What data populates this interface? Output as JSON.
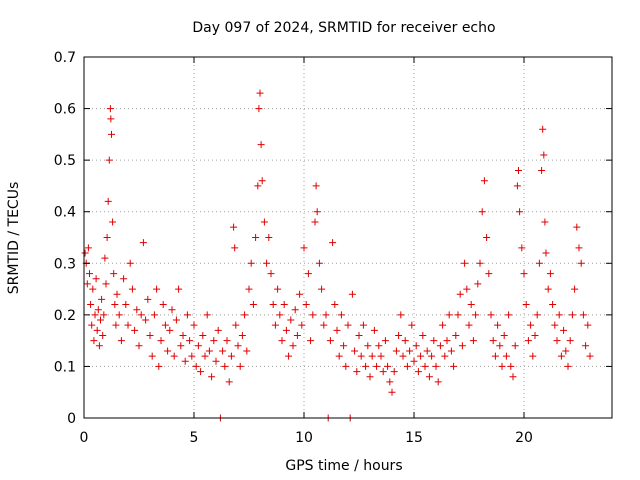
{
  "chart_data": {
    "type": "scatter",
    "title": "Day 097 of 2024, SRMTID for receiver echo",
    "xlabel": "GPS time / hours",
    "ylabel": "SRMTID / TECUs",
    "xlim": [
      0,
      24
    ],
    "ylim": [
      0,
      0.7
    ],
    "xticks": [
      0,
      5,
      10,
      15,
      20
    ],
    "yticks": [
      0,
      0.1,
      0.2,
      0.3,
      0.4,
      0.5,
      0.6,
      0.7
    ],
    "grid": true,
    "marker": "plus",
    "color": "#e00000",
    "series": [
      {
        "name": "SRMTID",
        "points": [
          [
            0.05,
            0.32
          ],
          [
            0.1,
            0.3
          ],
          [
            0.15,
            0.26
          ],
          [
            0.2,
            0.33
          ],
          [
            0.25,
            0.28
          ],
          [
            0.3,
            0.22
          ],
          [
            0.35,
            0.18
          ],
          [
            0.4,
            0.25
          ],
          [
            0.45,
            0.15
          ],
          [
            0.5,
            0.2
          ],
          [
            0.55,
            0.27
          ],
          [
            0.6,
            0.17
          ],
          [
            0.65,
            0.21
          ],
          [
            0.7,
            0.14
          ],
          [
            0.75,
            0.19
          ],
          [
            0.8,
            0.23
          ],
          [
            0.85,
            0.16
          ],
          [
            0.9,
            0.2
          ],
          [
            0.95,
            0.31
          ],
          [
            1.0,
            0.26
          ],
          [
            1.05,
            0.35
          ],
          [
            1.1,
            0.42
          ],
          [
            1.15,
            0.5
          ],
          [
            1.2,
            0.6
          ],
          [
            1.22,
            0.58
          ],
          [
            1.25,
            0.55
          ],
          [
            1.3,
            0.38
          ],
          [
            1.35,
            0.28
          ],
          [
            1.4,
            0.22
          ],
          [
            1.45,
            0.18
          ],
          [
            1.5,
            0.24
          ],
          [
            1.6,
            0.2
          ],
          [
            1.7,
            0.15
          ],
          [
            1.8,
            0.27
          ],
          [
            1.9,
            0.22
          ],
          [
            2.0,
            0.18
          ],
          [
            2.1,
            0.3
          ],
          [
            2.2,
            0.25
          ],
          [
            2.3,
            0.17
          ],
          [
            2.4,
            0.21
          ],
          [
            2.5,
            0.14
          ],
          [
            2.6,
            0.2
          ],
          [
            2.7,
            0.34
          ],
          [
            2.8,
            0.19
          ],
          [
            2.9,
            0.23
          ],
          [
            3.0,
            0.16
          ],
          [
            3.1,
            0.12
          ],
          [
            3.2,
            0.2
          ],
          [
            3.3,
            0.25
          ],
          [
            3.4,
            0.1
          ],
          [
            3.5,
            0.15
          ],
          [
            3.6,
            0.22
          ],
          [
            3.7,
            0.18
          ],
          [
            3.8,
            0.13
          ],
          [
            3.9,
            0.17
          ],
          [
            4.0,
            0.21
          ],
          [
            4.1,
            0.12
          ],
          [
            4.2,
            0.19
          ],
          [
            4.3,
            0.25
          ],
          [
            4.4,
            0.14
          ],
          [
            4.5,
            0.16
          ],
          [
            4.6,
            0.11
          ],
          [
            4.7,
            0.2
          ],
          [
            4.8,
            0.15
          ],
          [
            4.9,
            0.12
          ],
          [
            5.0,
            0.18
          ],
          [
            5.1,
            0.1
          ],
          [
            5.2,
            0.14
          ],
          [
            5.3,
            0.09
          ],
          [
            5.4,
            0.16
          ],
          [
            5.5,
            0.12
          ],
          [
            5.6,
            0.2
          ],
          [
            5.7,
            0.13
          ],
          [
            5.8,
            0.08
          ],
          [
            5.9,
            0.15
          ],
          [
            6.0,
            0.11
          ],
          [
            6.1,
            0.17
          ],
          [
            6.2,
            0.0
          ],
          [
            6.3,
            0.13
          ],
          [
            6.4,
            0.1
          ],
          [
            6.5,
            0.15
          ],
          [
            6.6,
            0.07
          ],
          [
            6.7,
            0.12
          ],
          [
            6.8,
            0.37
          ],
          [
            6.85,
            0.33
          ],
          [
            6.9,
            0.18
          ],
          [
            7.0,
            0.14
          ],
          [
            7.1,
            0.1
          ],
          [
            7.2,
            0.16
          ],
          [
            7.3,
            0.2
          ],
          [
            7.4,
            0.13
          ],
          [
            7.5,
            0.25
          ],
          [
            7.6,
            0.3
          ],
          [
            7.7,
            0.22
          ],
          [
            7.8,
            0.35
          ],
          [
            7.9,
            0.45
          ],
          [
            7.95,
            0.6
          ],
          [
            8.0,
            0.63
          ],
          [
            8.05,
            0.53
          ],
          [
            8.1,
            0.46
          ],
          [
            8.2,
            0.38
          ],
          [
            8.3,
            0.3
          ],
          [
            8.4,
            0.35
          ],
          [
            8.5,
            0.28
          ],
          [
            8.6,
            0.22
          ],
          [
            8.7,
            0.18
          ],
          [
            8.8,
            0.25
          ],
          [
            8.9,
            0.2
          ],
          [
            9.0,
            0.15
          ],
          [
            9.1,
            0.22
          ],
          [
            9.2,
            0.17
          ],
          [
            9.3,
            0.12
          ],
          [
            9.4,
            0.19
          ],
          [
            9.5,
            0.14
          ],
          [
            9.6,
            0.21
          ],
          [
            9.7,
            0.16
          ],
          [
            9.8,
            0.24
          ],
          [
            9.9,
            0.18
          ],
          [
            10.0,
            0.33
          ],
          [
            10.1,
            0.22
          ],
          [
            10.2,
            0.28
          ],
          [
            10.3,
            0.15
          ],
          [
            10.4,
            0.2
          ],
          [
            10.5,
            0.38
          ],
          [
            10.55,
            0.45
          ],
          [
            10.6,
            0.4
          ],
          [
            10.7,
            0.3
          ],
          [
            10.8,
            0.25
          ],
          [
            10.9,
            0.18
          ],
          [
            11.0,
            0.2
          ],
          [
            11.1,
            0.0
          ],
          [
            11.2,
            0.15
          ],
          [
            11.3,
            0.34
          ],
          [
            11.4,
            0.22
          ],
          [
            11.5,
            0.17
          ],
          [
            11.6,
            0.12
          ],
          [
            11.7,
            0.2
          ],
          [
            11.8,
            0.14
          ],
          [
            11.9,
            0.1
          ],
          [
            12.0,
            0.18
          ],
          [
            12.1,
            0.0
          ],
          [
            12.2,
            0.24
          ],
          [
            12.3,
            0.13
          ],
          [
            12.4,
            0.09
          ],
          [
            12.5,
            0.16
          ],
          [
            12.6,
            0.12
          ],
          [
            12.7,
            0.18
          ],
          [
            12.8,
            0.1
          ],
          [
            12.9,
            0.14
          ],
          [
            13.0,
            0.08
          ],
          [
            13.1,
            0.12
          ],
          [
            13.2,
            0.17
          ],
          [
            13.3,
            0.1
          ],
          [
            13.4,
            0.14
          ],
          [
            13.5,
            0.12
          ],
          [
            13.6,
            0.09
          ],
          [
            13.7,
            0.15
          ],
          [
            13.8,
            0.1
          ],
          [
            13.9,
            0.07
          ],
          [
            14.0,
            0.05
          ],
          [
            14.1,
            0.09
          ],
          [
            14.2,
            0.13
          ],
          [
            14.3,
            0.16
          ],
          [
            14.4,
            0.2
          ],
          [
            14.5,
            0.12
          ],
          [
            14.6,
            0.15
          ],
          [
            14.7,
            0.1
          ],
          [
            14.8,
            0.13
          ],
          [
            14.9,
            0.18
          ],
          [
            15.0,
            0.11
          ],
          [
            15.1,
            0.14
          ],
          [
            15.2,
            0.09
          ],
          [
            15.3,
            0.12
          ],
          [
            15.4,
            0.16
          ],
          [
            15.5,
            0.1
          ],
          [
            15.6,
            0.13
          ],
          [
            15.7,
            0.08
          ],
          [
            15.8,
            0.12
          ],
          [
            15.9,
            0.15
          ],
          [
            16.0,
            0.1
          ],
          [
            16.1,
            0.07
          ],
          [
            16.2,
            0.14
          ],
          [
            16.3,
            0.18
          ],
          [
            16.4,
            0.12
          ],
          [
            16.5,
            0.15
          ],
          [
            16.6,
            0.2
          ],
          [
            16.7,
            0.13
          ],
          [
            16.8,
            0.1
          ],
          [
            16.9,
            0.16
          ],
          [
            17.0,
            0.2
          ],
          [
            17.1,
            0.24
          ],
          [
            17.2,
            0.14
          ],
          [
            17.3,
            0.3
          ],
          [
            17.4,
            0.25
          ],
          [
            17.5,
            0.18
          ],
          [
            17.6,
            0.22
          ],
          [
            17.7,
            0.15
          ],
          [
            17.8,
            0.2
          ],
          [
            17.9,
            0.26
          ],
          [
            18.0,
            0.3
          ],
          [
            18.1,
            0.4
          ],
          [
            18.2,
            0.46
          ],
          [
            18.3,
            0.35
          ],
          [
            18.4,
            0.28
          ],
          [
            18.5,
            0.2
          ],
          [
            18.6,
            0.15
          ],
          [
            18.7,
            0.12
          ],
          [
            18.8,
            0.18
          ],
          [
            18.9,
            0.14
          ],
          [
            19.0,
            0.1
          ],
          [
            19.1,
            0.16
          ],
          [
            19.2,
            0.12
          ],
          [
            19.3,
            0.2
          ],
          [
            19.4,
            0.1
          ],
          [
            19.5,
            0.08
          ],
          [
            19.6,
            0.14
          ],
          [
            19.7,
            0.45
          ],
          [
            19.75,
            0.48
          ],
          [
            19.8,
            0.4
          ],
          [
            19.9,
            0.33
          ],
          [
            20.0,
            0.28
          ],
          [
            20.1,
            0.22
          ],
          [
            20.2,
            0.15
          ],
          [
            20.3,
            0.18
          ],
          [
            20.4,
            0.12
          ],
          [
            20.5,
            0.16
          ],
          [
            20.6,
            0.2
          ],
          [
            20.7,
            0.3
          ],
          [
            20.8,
            0.48
          ],
          [
            20.85,
            0.56
          ],
          [
            20.9,
            0.51
          ],
          [
            20.95,
            0.38
          ],
          [
            21.0,
            0.32
          ],
          [
            21.1,
            0.25
          ],
          [
            21.2,
            0.28
          ],
          [
            21.3,
            0.22
          ],
          [
            21.4,
            0.18
          ],
          [
            21.5,
            0.15
          ],
          [
            21.6,
            0.2
          ],
          [
            21.7,
            0.12
          ],
          [
            21.8,
            0.17
          ],
          [
            21.9,
            0.13
          ],
          [
            22.0,
            0.1
          ],
          [
            22.1,
            0.15
          ],
          [
            22.2,
            0.2
          ],
          [
            22.3,
            0.25
          ],
          [
            22.4,
            0.37
          ],
          [
            22.5,
            0.33
          ],
          [
            22.6,
            0.3
          ],
          [
            22.7,
            0.2
          ],
          [
            22.8,
            0.14
          ],
          [
            22.9,
            0.18
          ],
          [
            23.0,
            0.12
          ]
        ]
      }
    ]
  }
}
